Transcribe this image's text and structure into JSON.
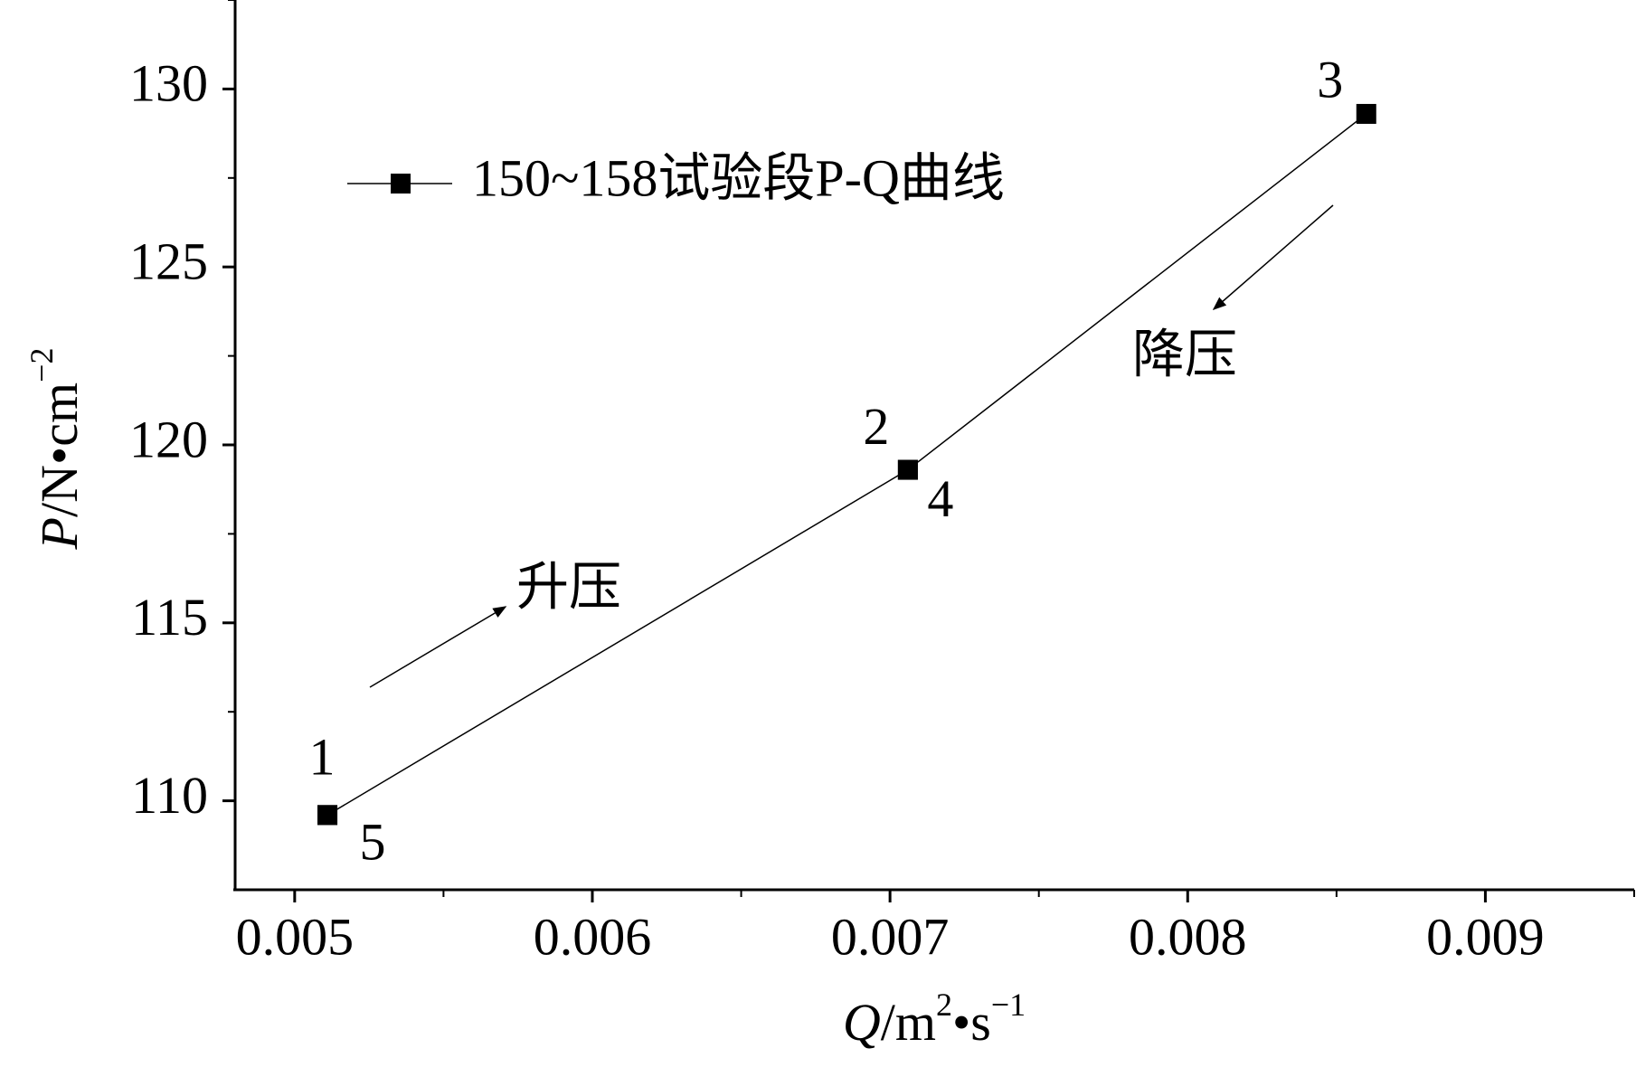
{
  "chart_data": {
    "type": "line",
    "x": [
      0.00511,
      0.00706,
      0.0086,
      0.00706,
      0.00511
    ],
    "series": [
      {
        "name": "150~158试验段P-Q曲线",
        "color": "#000000",
        "values": [
          109.6,
          119.3,
          129.3,
          119.3,
          109.6
        ],
        "point_labels": [
          "1",
          "2",
          "3",
          "4",
          "5"
        ]
      }
    ],
    "xlim": [
      0.0048,
      0.0095
    ],
    "xticks": [
      0.005,
      0.006,
      0.007,
      0.008,
      0.009
    ],
    "xminorticks": [
      0.0055,
      0.0065,
      0.0075,
      0.0085,
      0.0095
    ],
    "ylim": [
      107.5,
      132.5
    ],
    "yticks": [
      110,
      115,
      120,
      125,
      130
    ],
    "yminorticks": [
      112.5,
      117.5,
      122.5,
      127.5,
      132.5
    ],
    "xlabel": [
      "Q",
      "/m",
      "2",
      "•s",
      "−1"
    ],
    "ylabel": [
      "P",
      "/N•cm",
      "−2"
    ],
    "annotations": [
      "升压",
      "降压"
    ],
    "grid": false,
    "legend": "upper left"
  }
}
